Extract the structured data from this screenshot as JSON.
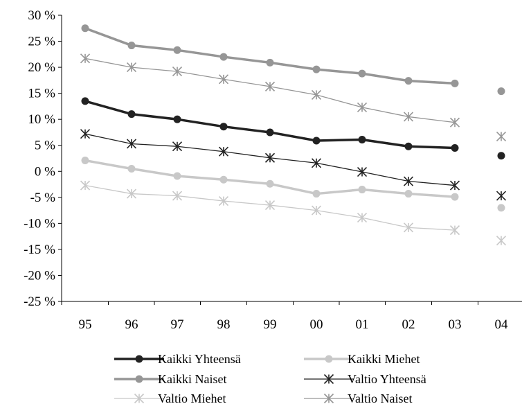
{
  "chart_data": {
    "type": "line",
    "categories": [
      "95",
      "96",
      "97",
      "98",
      "99",
      "00",
      "01",
      "02",
      "03",
      "04"
    ],
    "ylim": [
      -25,
      30
    ],
    "yticks": [
      30,
      25,
      20,
      15,
      10,
      5,
      0,
      -5,
      -10,
      -15,
      -20,
      -25
    ],
    "ytick_labels": [
      "30 %",
      "25 %",
      "20 %",
      "15 %",
      "10 %",
      "5 %",
      "0 %",
      "-5 %",
      "-10 %",
      "-15 %",
      "-20 %",
      "-25 %"
    ],
    "grid": false,
    "legend_position": "bottom",
    "series": [
      {
        "name": "Kaikki Yhteensä",
        "color": "#222222",
        "marker": "circle",
        "lineWidth": 3.5,
        "values": [
          13.5,
          11.0,
          10.0,
          8.6,
          7.5,
          5.9,
          6.1,
          4.8,
          4.5,
          3.0
        ]
      },
      {
        "name": "Kaikki Miehet",
        "color": "#c8c8c8",
        "marker": "circle",
        "lineWidth": 3.5,
        "values": [
          2.1,
          0.5,
          -0.9,
          -1.6,
          -2.4,
          -4.3,
          -3.5,
          -4.3,
          -4.9,
          -7.0
        ]
      },
      {
        "name": "Kaikki Naiset",
        "color": "#969696",
        "marker": "circle",
        "lineWidth": 3.5,
        "values": [
          27.5,
          24.2,
          23.3,
          22.0,
          20.9,
          19.6,
          18.8,
          17.4,
          16.9,
          15.4
        ]
      },
      {
        "name": "Valtio Yhteensä",
        "color": "#222222",
        "marker": "asterisk",
        "lineWidth": 1.3,
        "values": [
          7.2,
          5.3,
          4.8,
          3.8,
          2.6,
          1.6,
          -0.1,
          -1.9,
          -2.7,
          -4.7
        ]
      },
      {
        "name": "Valtio Miehet",
        "color": "#c8c8c8",
        "marker": "asterisk",
        "lineWidth": 1.3,
        "values": [
          -2.7,
          -4.3,
          -4.7,
          -5.7,
          -6.5,
          -7.5,
          -8.9,
          -10.8,
          -11.3,
          -13.3
        ]
      },
      {
        "name": "Valtio Naiset",
        "color": "#969696",
        "marker": "asterisk",
        "lineWidth": 1.3,
        "values": [
          21.7,
          20.0,
          19.2,
          17.7,
          16.3,
          14.7,
          12.3,
          10.5,
          9.4,
          6.7
        ]
      }
    ]
  }
}
